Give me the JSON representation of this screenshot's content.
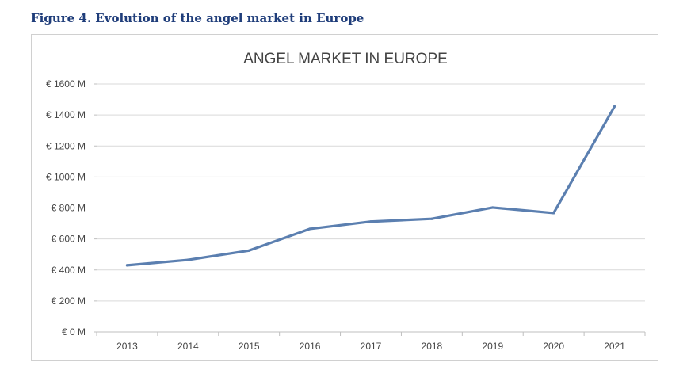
{
  "figure": {
    "title": "Figure 4. Evolution of the angel market in Europe"
  },
  "chart_data": {
    "type": "line",
    "title": "ANGEL MARKET IN EUROPE",
    "xlabel": "",
    "ylabel": "",
    "categories": [
      "2013",
      "2014",
      "2015",
      "2016",
      "2017",
      "2018",
      "2019",
      "2020",
      "2021"
    ],
    "series": [
      {
        "name": "Angel market",
        "values": [
          430,
          465,
          525,
          665,
          712,
          730,
          803,
          767,
          1455
        ],
        "color": "#5b7fb0"
      }
    ],
    "ylim": [
      0,
      1600
    ],
    "yticks": [
      0,
      200,
      400,
      600,
      800,
      1000,
      1200,
      1400,
      1600
    ],
    "ytick_labels": [
      "€ 0 M",
      "€ 200 M",
      "€ 400 M",
      "€ 600 M",
      "€ 800 M",
      "€ 1000 M",
      "€ 1200 M",
      "€ 1400 M",
      "€ 1600 M"
    ],
    "grid": true,
    "colors": {
      "grid": "#d9d9d9",
      "axis": "#bfbfbf",
      "text": "#444444"
    }
  }
}
